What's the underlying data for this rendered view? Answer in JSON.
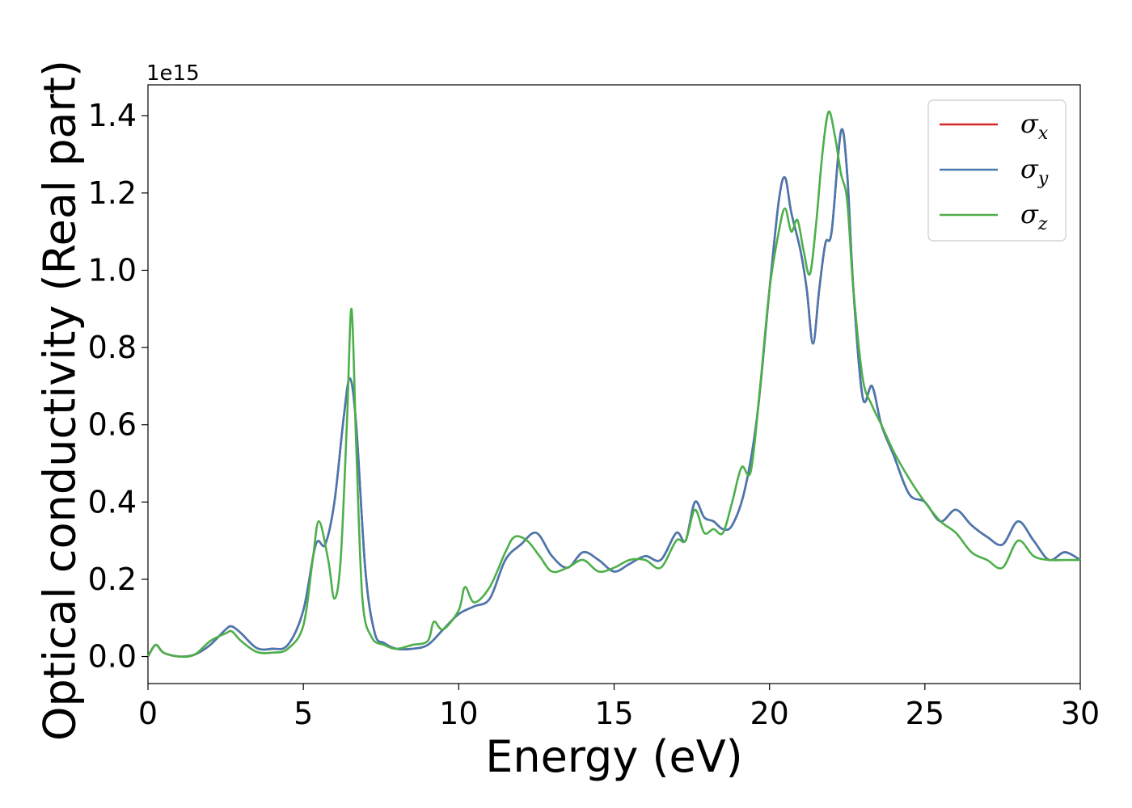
{
  "chart_data": {
    "type": "line",
    "xlabel": "Energy (eV)",
    "ylabel": "Optical conductivity (Real part)",
    "y_offset_label": "1e15",
    "xlim": [
      0,
      30
    ],
    "ylim": [
      -0.07,
      1.48
    ],
    "xticks": [
      0,
      5,
      10,
      15,
      20,
      25,
      30
    ],
    "xtick_labels": [
      "0",
      "5",
      "10",
      "15",
      "20",
      "25",
      "30"
    ],
    "yticks": [
      0.0,
      0.2,
      0.4,
      0.6,
      0.8,
      1.0,
      1.2,
      1.4
    ],
    "ytick_labels": [
      "0.0",
      "0.2",
      "0.4",
      "0.6",
      "0.8",
      "1.0",
      "1.2",
      "1.4"
    ],
    "grid": false,
    "legend_position": "top-right",
    "series": [
      {
        "name": "σx",
        "legend_base": "σ",
        "legend_sub": "x",
        "color": "#d62728",
        "x": [
          0,
          0.25,
          0.5,
          1,
          1.5,
          2,
          2.5,
          2.7,
          3,
          3.5,
          4,
          4.5,
          5,
          5.4,
          5.7,
          6,
          6.3,
          6.5,
          6.7,
          7,
          7.3,
          7.6,
          8,
          8.5,
          9,
          9.5,
          10,
          10.5,
          11,
          11.5,
          12,
          12.5,
          13,
          13.5,
          14,
          14.5,
          15,
          15.5,
          16,
          16.5,
          17,
          17.3,
          17.6,
          17.9,
          18.2,
          18.5,
          18.8,
          19.2,
          19.6,
          20,
          20.3,
          20.5,
          20.7,
          21,
          21.2,
          21.4,
          21.6,
          21.8,
          22,
          22.3,
          22.5,
          22.7,
          23,
          23.3,
          23.6,
          24,
          24.5,
          25,
          25.5,
          26,
          26.5,
          27,
          27.5,
          28,
          28.5,
          29,
          29.5,
          30
        ],
        "y": [
          0.0,
          0.03,
          0.01,
          0.0,
          0.005,
          0.03,
          0.07,
          0.078,
          0.06,
          0.022,
          0.02,
          0.03,
          0.12,
          0.29,
          0.29,
          0.4,
          0.62,
          0.72,
          0.6,
          0.22,
          0.06,
          0.035,
          0.02,
          0.02,
          0.03,
          0.07,
          0.11,
          0.13,
          0.15,
          0.25,
          0.29,
          0.32,
          0.26,
          0.23,
          0.27,
          0.25,
          0.22,
          0.24,
          0.26,
          0.25,
          0.32,
          0.3,
          0.4,
          0.36,
          0.35,
          0.33,
          0.34,
          0.43,
          0.62,
          0.95,
          1.18,
          1.24,
          1.15,
          1.05,
          0.95,
          0.81,
          0.95,
          1.07,
          1.1,
          1.36,
          1.25,
          0.95,
          0.67,
          0.7,
          0.6,
          0.52,
          0.42,
          0.4,
          0.35,
          0.38,
          0.34,
          0.31,
          0.29,
          0.35,
          0.3,
          0.25,
          0.27,
          0.25
        ]
      },
      {
        "name": "σy",
        "legend_base": "σ",
        "legend_sub": "y",
        "color": "#4878b0",
        "x": [
          0,
          0.25,
          0.5,
          1,
          1.5,
          2,
          2.5,
          2.7,
          3,
          3.5,
          4,
          4.5,
          5,
          5.4,
          5.7,
          6,
          6.3,
          6.5,
          6.7,
          7,
          7.3,
          7.6,
          8,
          8.5,
          9,
          9.5,
          10,
          10.5,
          11,
          11.5,
          12,
          12.5,
          13,
          13.5,
          14,
          14.5,
          15,
          15.5,
          16,
          16.5,
          17,
          17.3,
          17.6,
          17.9,
          18.2,
          18.5,
          18.8,
          19.2,
          19.6,
          20,
          20.3,
          20.5,
          20.7,
          21,
          21.2,
          21.4,
          21.6,
          21.8,
          22,
          22.3,
          22.5,
          22.7,
          23,
          23.3,
          23.6,
          24,
          24.5,
          25,
          25.5,
          26,
          26.5,
          27,
          27.5,
          28,
          28.5,
          29,
          29.5,
          30
        ],
        "y": [
          0.0,
          0.03,
          0.01,
          0.0,
          0.005,
          0.03,
          0.07,
          0.078,
          0.06,
          0.022,
          0.02,
          0.03,
          0.12,
          0.29,
          0.29,
          0.4,
          0.62,
          0.72,
          0.6,
          0.22,
          0.06,
          0.035,
          0.02,
          0.02,
          0.03,
          0.07,
          0.11,
          0.13,
          0.15,
          0.25,
          0.29,
          0.32,
          0.26,
          0.23,
          0.27,
          0.25,
          0.22,
          0.24,
          0.26,
          0.25,
          0.32,
          0.3,
          0.4,
          0.36,
          0.35,
          0.33,
          0.34,
          0.43,
          0.62,
          0.95,
          1.18,
          1.24,
          1.15,
          1.05,
          0.95,
          0.81,
          0.95,
          1.07,
          1.1,
          1.36,
          1.25,
          0.95,
          0.67,
          0.7,
          0.6,
          0.52,
          0.42,
          0.4,
          0.35,
          0.38,
          0.34,
          0.31,
          0.29,
          0.35,
          0.3,
          0.25,
          0.27,
          0.25
        ]
      },
      {
        "name": "σz",
        "legend_base": "σ",
        "legend_sub": "z",
        "color": "#4daf4a",
        "x": [
          0,
          0.25,
          0.5,
          1,
          1.5,
          2,
          2.5,
          2.7,
          3,
          3.5,
          4,
          4.5,
          5,
          5.3,
          5.5,
          5.8,
          6,
          6.2,
          6.4,
          6.55,
          6.7,
          6.9,
          7.2,
          7.6,
          8,
          8.5,
          9,
          9.2,
          9.5,
          10,
          10.2,
          10.5,
          11,
          11.5,
          11.8,
          12.2,
          12.6,
          13,
          13.5,
          14,
          14.5,
          15,
          15.5,
          16,
          16.5,
          17,
          17.3,
          17.6,
          17.9,
          18.2,
          18.5,
          18.8,
          19.1,
          19.4,
          19.7,
          20,
          20.3,
          20.5,
          20.7,
          20.9,
          21.1,
          21.3,
          21.5,
          21.7,
          21.9,
          22.1,
          22.3,
          22.5,
          22.7,
          23,
          23.3,
          23.6,
          24,
          24.5,
          25,
          25.5,
          26,
          26.5,
          27,
          27.5,
          28,
          28.5,
          29,
          29.5,
          30
        ],
        "y": [
          0.0,
          0.03,
          0.01,
          0.0,
          0.005,
          0.04,
          0.06,
          0.065,
          0.04,
          0.012,
          0.01,
          0.02,
          0.08,
          0.25,
          0.35,
          0.25,
          0.15,
          0.25,
          0.6,
          0.9,
          0.55,
          0.15,
          0.05,
          0.03,
          0.02,
          0.03,
          0.04,
          0.09,
          0.07,
          0.12,
          0.18,
          0.14,
          0.18,
          0.27,
          0.31,
          0.3,
          0.26,
          0.22,
          0.23,
          0.25,
          0.22,
          0.23,
          0.25,
          0.25,
          0.23,
          0.3,
          0.3,
          0.38,
          0.32,
          0.33,
          0.32,
          0.4,
          0.49,
          0.48,
          0.7,
          0.95,
          1.1,
          1.16,
          1.1,
          1.13,
          1.05,
          0.99,
          1.12,
          1.3,
          1.41,
          1.35,
          1.25,
          1.18,
          0.95,
          0.72,
          0.65,
          0.6,
          0.53,
          0.46,
          0.4,
          0.35,
          0.32,
          0.27,
          0.25,
          0.23,
          0.3,
          0.26,
          0.25,
          0.25,
          0.25
        ]
      }
    ]
  }
}
